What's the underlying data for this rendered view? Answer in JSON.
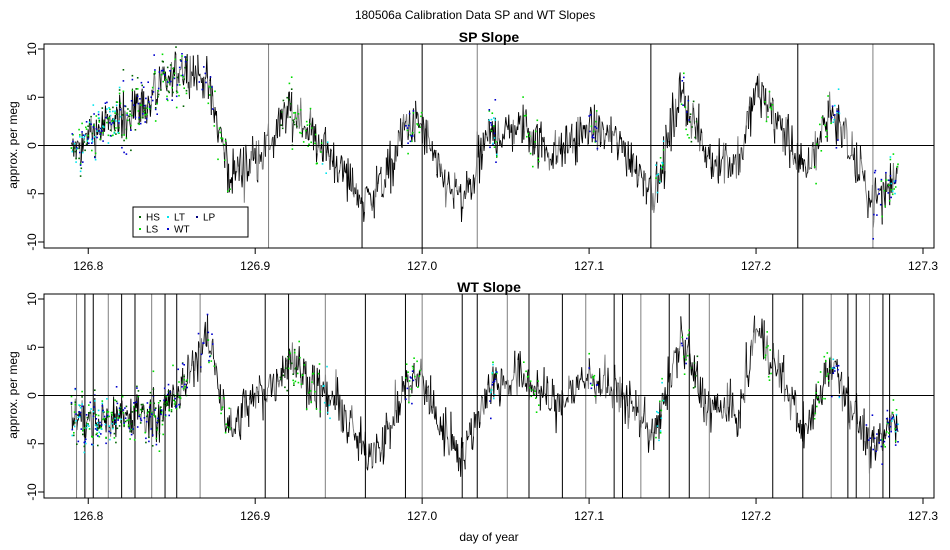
{
  "title": "180506a   Calibration Data SP and WT Slopes",
  "xlabel": "day of year",
  "colors": {
    "line_dark": "#000000",
    "line_gray": "#7f7f7f",
    "HS": "#006400",
    "LS": "#00dd00",
    "LT": "#00e5ee",
    "WT": "#0000cd",
    "LP": "#000080"
  },
  "legend": {
    "items": [
      {
        "label": "HS",
        "color": "#006400"
      },
      {
        "label": "LT",
        "color": "#00e5ee"
      },
      {
        "label": "LP",
        "color": "#000080"
      },
      {
        "label": "LS",
        "color": "#00dd00"
      },
      {
        "label": "WT",
        "color": "#0000cd"
      }
    ]
  },
  "chart_data": [
    {
      "type": "line",
      "title": "SP Slope",
      "xlabel": "",
      "ylabel": "approx. per meg",
      "xlim": [
        126.77,
        127.31
      ],
      "ylim": [
        -10.5,
        10.5
      ],
      "x_ticks": [
        126.8,
        126.9,
        127.0,
        127.1,
        127.2,
        127.3
      ],
      "x_tick_labels": [
        "126.8",
        "126.9",
        "127.0",
        "127.1",
        "127.2",
        "127.3"
      ],
      "y_ticks": [
        -10,
        -5,
        0,
        5,
        10
      ],
      "y_tick_labels": [
        "-10",
        "-5",
        "0",
        "5",
        "10"
      ],
      "hline": 0,
      "legend_position": "bottom-left",
      "trend": {
        "x": [
          126.79,
          126.8,
          126.82,
          126.84,
          126.855,
          126.87,
          126.875,
          126.885,
          126.895,
          126.91,
          126.92,
          126.935,
          126.95,
          126.965,
          126.98,
          126.99,
          127.0,
          127.01,
          127.025,
          127.04,
          127.06,
          127.08,
          127.1,
          127.12,
          127.14,
          127.155,
          127.17,
          127.19,
          127.2,
          127.215,
          127.23,
          127.245,
          127.26,
          127.27,
          127.285
        ],
        "y": [
          -1,
          1,
          3,
          5,
          8,
          7,
          4,
          -3,
          -2,
          0,
          4,
          1,
          -2,
          -6,
          -3,
          2,
          2,
          -3,
          -6,
          1,
          2,
          -1,
          2,
          0,
          -5,
          6,
          -1,
          -2,
          6,
          2,
          -3,
          4,
          -2,
          -6,
          -3
        ]
      },
      "series": [
        {
          "name": "HS",
          "segments": [
            [
              126.79,
              126.86
            ],
            [
              126.915,
              126.925
            ],
            [
              127.16,
              127.165
            ]
          ]
        },
        {
          "name": "LS",
          "segments": [
            [
              126.79,
              126.86
            ],
            [
              126.87,
              126.885
            ],
            [
              126.92,
              126.94
            ],
            [
              126.99,
              127.0
            ],
            [
              127.04,
              127.045
            ],
            [
              127.06,
              127.07
            ],
            [
              127.1,
              127.105
            ],
            [
              127.14,
              127.145
            ],
            [
              127.155,
              127.16
            ],
            [
              127.205,
              127.21
            ],
            [
              127.235,
              127.245
            ],
            [
              127.275,
              127.285
            ]
          ]
        },
        {
          "name": "LT",
          "segments": [
            [
              126.79,
              126.82
            ],
            [
              126.94,
              126.945
            ],
            [
              127.04,
              127.045
            ],
            [
              127.14,
              127.145
            ],
            [
              127.245,
              127.25
            ],
            [
              127.28,
              127.285
            ]
          ]
        },
        {
          "name": "WT",
          "segments": [
            [
              126.79,
              126.86
            ],
            [
              126.865,
              126.875
            ],
            [
              126.99,
              126.995
            ],
            [
              127.04,
              127.045
            ],
            [
              127.1,
              127.105
            ],
            [
              127.155,
              127.16
            ],
            [
              127.245,
              127.25
            ],
            [
              127.27,
              127.285
            ]
          ]
        }
      ]
    },
    {
      "type": "line",
      "title": "WT Slope",
      "xlabel": "day of year",
      "ylabel": "approx. per meg",
      "xlim": [
        126.77,
        127.31
      ],
      "ylim": [
        -10.5,
        10.5
      ],
      "x_ticks": [
        126.8,
        126.9,
        127.0,
        127.1,
        127.2,
        127.3
      ],
      "x_tick_labels": [
        "126.8",
        "126.9",
        "127.0",
        "127.1",
        "127.2",
        "127.3"
      ],
      "y_ticks": [
        -10,
        -5,
        0,
        5,
        10
      ],
      "y_tick_labels": [
        "-10",
        "-5",
        "0",
        "5",
        "10"
      ],
      "hline": 0,
      "trend": {
        "x": [
          126.79,
          126.8,
          126.82,
          126.84,
          126.855,
          126.87,
          126.875,
          126.885,
          126.895,
          126.91,
          126.92,
          126.935,
          126.95,
          126.965,
          126.98,
          126.99,
          127.0,
          127.01,
          127.025,
          127.04,
          127.06,
          127.08,
          127.1,
          127.12,
          127.14,
          127.155,
          127.17,
          127.19,
          127.2,
          127.215,
          127.23,
          127.245,
          127.26,
          127.27,
          127.285
        ],
        "y": [
          -2,
          -3,
          -2,
          -2,
          0,
          6,
          4,
          -4,
          -1,
          1,
          4,
          1,
          -1,
          -6,
          -4,
          1,
          2,
          -3,
          -6,
          1,
          2,
          -1,
          2,
          0,
          -4,
          6,
          -1,
          -2,
          7,
          2,
          -4,
          4,
          -2,
          -6,
          -2
        ]
      },
      "series": [
        {
          "name": "HS",
          "segments": [
            [
              126.79,
              126.86
            ],
            [
              126.915,
              126.925
            ],
            [
              127.16,
              127.165
            ]
          ]
        },
        {
          "name": "LS",
          "segments": [
            [
              126.79,
              126.86
            ],
            [
              126.87,
              126.885
            ],
            [
              126.92,
              126.94
            ],
            [
              126.99,
              127.0
            ],
            [
              127.04,
              127.045
            ],
            [
              127.06,
              127.07
            ],
            [
              127.1,
              127.105
            ],
            [
              127.14,
              127.145
            ],
            [
              127.155,
              127.16
            ],
            [
              127.205,
              127.21
            ],
            [
              127.235,
              127.245
            ],
            [
              127.275,
              127.285
            ]
          ]
        },
        {
          "name": "LT",
          "segments": [
            [
              126.79,
              126.82
            ],
            [
              126.94,
              126.945
            ],
            [
              127.04,
              127.045
            ],
            [
              127.14,
              127.145
            ],
            [
              127.245,
              127.25
            ],
            [
              127.28,
              127.285
            ]
          ]
        },
        {
          "name": "WT",
          "segments": [
            [
              126.79,
              126.86
            ],
            [
              126.865,
              126.875
            ],
            [
              126.99,
              126.995
            ],
            [
              127.04,
              127.045
            ],
            [
              127.1,
              127.105
            ],
            [
              127.155,
              127.16
            ],
            [
              127.245,
              127.25
            ],
            [
              127.265,
              127.285
            ]
          ]
        }
      ],
      "spike_days": [
        126.793,
        126.798,
        126.803,
        126.812,
        126.82,
        126.828,
        126.838,
        126.846,
        126.853,
        126.867,
        126.906,
        126.92,
        126.942,
        126.966,
        126.99,
        127.0,
        127.024,
        127.033,
        127.051,
        127.064,
        127.084,
        127.098,
        127.115,
        127.12,
        127.131,
        127.148,
        127.16,
        127.172,
        127.21,
        127.228,
        127.245,
        127.255,
        127.26,
        127.268,
        127.276,
        127.28
      ]
    }
  ]
}
